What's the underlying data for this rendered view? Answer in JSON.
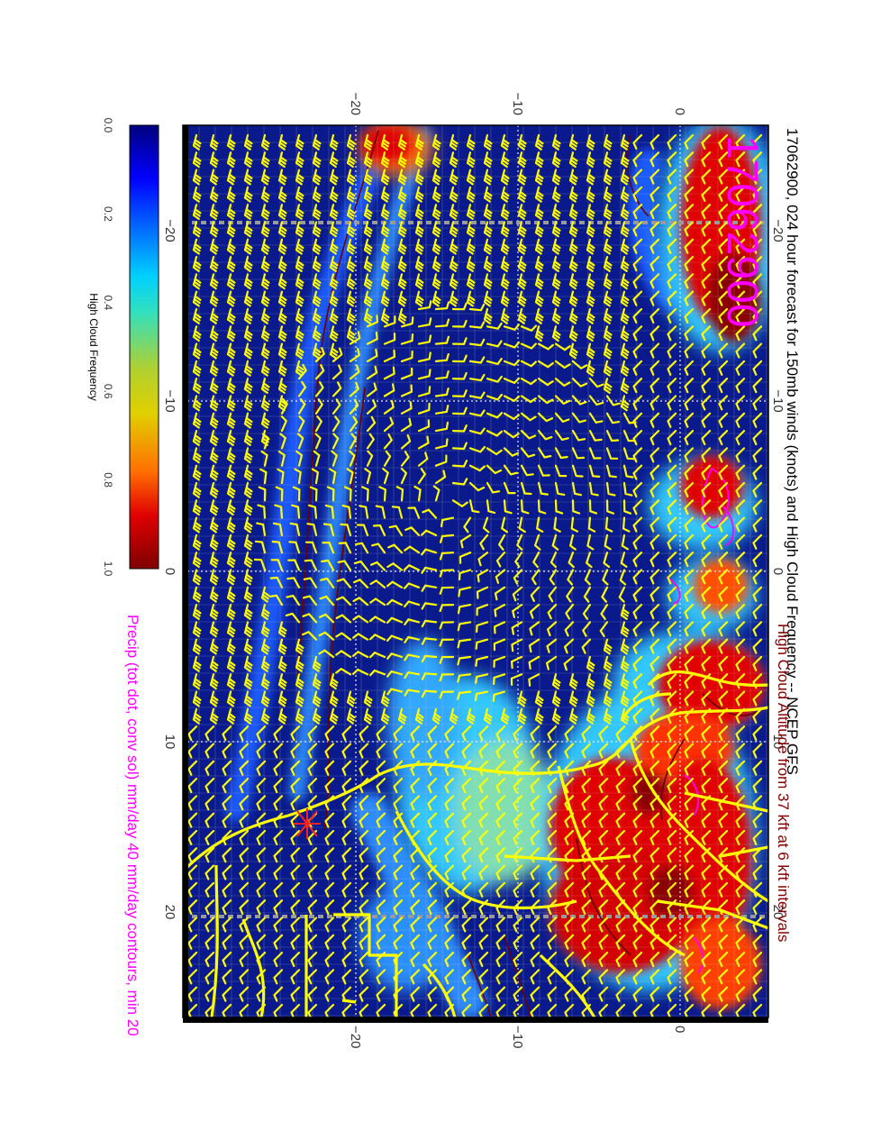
{
  "title": "17062900, 024 hour forecast for 150mb winds (knots) and High Cloud Frequency -- NCEP GFS",
  "stamp": "17062900",
  "subtitle_line1": "High Cloud Altitude from 37 kft at 6 kft intervals",
  "subtitle_line2": "Precip (tot dot, conv sol) mm/day 40 mm/day contours, min 20",
  "colorbar": {
    "label": "High Cloud Frequency",
    "ticks": [
      "0.0",
      "0.2",
      "0.4",
      "0.6",
      "0.8",
      "1.0"
    ]
  },
  "map": {
    "lon_ticks": [
      "−20",
      "−10",
      "0",
      "10",
      "20"
    ],
    "lat_ticks": [
      "−20",
      "−10",
      "0"
    ]
  },
  "colors": {
    "title_text": "#000000",
    "stamp_text": "#ff00ff",
    "subtitle1_text": "#800000",
    "subtitle2_text": "#ff00ff",
    "ocean_background": "#0a1a8c",
    "wind_barbs": "#ffff00",
    "coastlines": "#ffff00",
    "contours": "#6b0000",
    "precip_contours": "#ff00ff",
    "grid": "#c8c8c8"
  }
}
